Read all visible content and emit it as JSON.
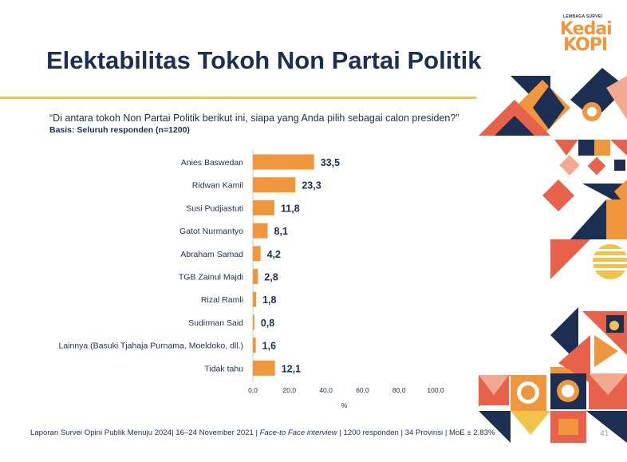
{
  "logo": {
    "small_text": "LEMBAGA SURVEI",
    "line1": "Kedai",
    "line2": "KOPI",
    "tagline": "KELOMPOK DISKUSI DAN KAJIAN OPINI PUBLIK INDONESIA"
  },
  "slide": {
    "title": "Elektabilitas Tokoh Non Partai Politik",
    "question": "“Di antara tokoh Non Partai Politik berikut ini, siapa yang Anda pilih sebagai calon presiden?”",
    "basis": "Basis: Seluruh responden (n=1200)",
    "page_number": "41"
  },
  "footer": {
    "part1": "Laporan Survei Opini Publik Menuju 2024| 16–24 November 2021 | ",
    "italic": "Face-to Face interview",
    "part2": " | 1200 responden | 34 Provinsi | MoE ± 2.83%"
  },
  "colors": {
    "bar": "#f0973e",
    "navy": "#1c2f52",
    "accent_yellow": "#f1c34b",
    "coral": "#e8614a"
  },
  "chart_data": {
    "type": "bar",
    "orientation": "horizontal",
    "categories": [
      "Anies Baswedan",
      "Ridwan Kamil",
      "Susi Pudjiastuti",
      "Gatot Nurmantyo",
      "Abraham Samad",
      "TGB Zainul Majdi",
      "Rizal Ramli",
      "Sudirman Said",
      "Lainnya (Basuki Tjahaja Purnama, Moeldoko, dll.)",
      "Tidak tahu"
    ],
    "values": [
      33.5,
      23.3,
      11.8,
      8.1,
      4.2,
      2.8,
      1.8,
      0.8,
      1.6,
      12.1
    ],
    "value_labels": [
      "33,5",
      "23,3",
      "11,8",
      "8,1",
      "4,2",
      "2,8",
      "1,8",
      "0,8",
      "1,6",
      "12,1"
    ],
    "xticks": [
      0,
      20,
      40,
      60,
      80,
      100
    ],
    "xtick_labels": [
      "0,0",
      "20,0",
      "40,0",
      "60,0",
      "80,0",
      "100,0"
    ],
    "xlabel": "%",
    "ylabel": "",
    "xlim": [
      0,
      100
    ],
    "grid": false,
    "legend": "none"
  }
}
